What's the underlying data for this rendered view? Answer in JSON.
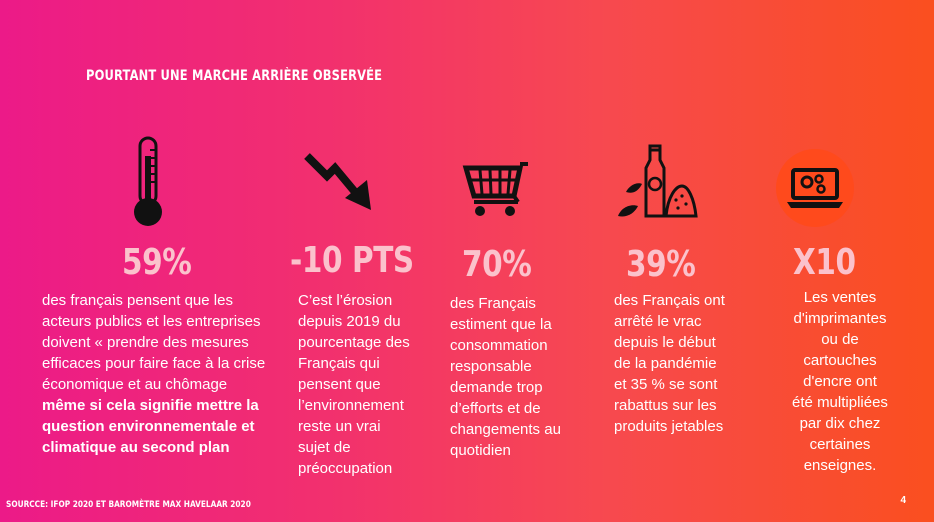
{
  "title": "Pourtant une marche arrière observée",
  "items": [
    {
      "icon": "thermometer-icon",
      "stat": "59%",
      "desc_lines": [
        {
          "text": "des français pensent que les",
          "bold": false
        },
        {
          "text": "acteurs publics et les entreprises",
          "bold": false
        },
        {
          "text": "doivent « prendre des mesures",
          "bold": false
        },
        {
          "text": "efficaces pour faire face à la crise",
          "bold": false
        },
        {
          "text": "économique et au chômage",
          "bold": false
        },
        {
          "text": "même si cela signifie mettre la",
          "bold": true
        },
        {
          "text": "question environnementale et",
          "bold": true
        },
        {
          "text": "climatique au second plan",
          "bold": true
        }
      ]
    },
    {
      "icon": "trend-down-arrow-icon",
      "stat": "-10 PTS",
      "desc_lines": [
        {
          "text": "C’est l’érosion",
          "bold": false
        },
        {
          "text": "depuis 2019 du",
          "bold": false
        },
        {
          "text": "pourcentage des",
          "bold": false
        },
        {
          "text": "Français qui",
          "bold": false
        },
        {
          "text": "pensent que",
          "bold": false
        },
        {
          "text": "l’environnement",
          "bold": false
        },
        {
          "text": "reste un vrai",
          "bold": false
        },
        {
          "text": "sujet de",
          "bold": false
        },
        {
          "text": "préoccupation",
          "bold": false
        }
      ]
    },
    {
      "icon": "shopping-cart-icon",
      "stat": "70%",
      "desc_lines": [
        {
          "text": "des Français",
          "bold": false
        },
        {
          "text": "estiment que la",
          "bold": false
        },
        {
          "text": "consommation",
          "bold": false
        },
        {
          "text": "responsable",
          "bold": false
        },
        {
          "text": "demande trop",
          "bold": false
        },
        {
          "text": "d’efforts et de",
          "bold": false
        },
        {
          "text": "changements au",
          "bold": false
        },
        {
          "text": "quotidien",
          "bold": false
        }
      ]
    },
    {
      "icon": "bulk-grocery-icon",
      "stat": "39%",
      "desc_lines": [
        {
          "text": "des Français ont",
          "bold": false
        },
        {
          "text": "arrêté le vrac",
          "bold": false
        },
        {
          "text": "depuis le début",
          "bold": false
        },
        {
          "text": "de la pandémie",
          "bold": false
        },
        {
          "text": "et 35 % se sont",
          "bold": false
        },
        {
          "text": "rabattus sur les",
          "bold": false
        },
        {
          "text": "produits jetables",
          "bold": false
        }
      ]
    },
    {
      "icon": "laptop-gears-icon",
      "stat": "X10",
      "desc_lines": [
        {
          "text": "Les ventes",
          "bold": false
        },
        {
          "text": "d'imprimantes",
          "bold": false
        },
        {
          "text": "ou de",
          "bold": false
        },
        {
          "text": "cartouches",
          "bold": false
        },
        {
          "text": "d'encre ont",
          "bold": false
        },
        {
          "text": "été multipliées",
          "bold": false
        },
        {
          "text": "par dix chez",
          "bold": false
        },
        {
          "text": "certaines",
          "bold": false
        },
        {
          "text": "enseignes.",
          "bold": false
        }
      ]
    }
  ],
  "source": "Sourcce: IFOP 2020 et Baromètre Max Havelaar 2020",
  "page_number": "4",
  "colors": {
    "stat": "#fbc2cc",
    "text": "#ffffff",
    "icon": "#111111",
    "icon_circle": "#ff4a1c"
  }
}
